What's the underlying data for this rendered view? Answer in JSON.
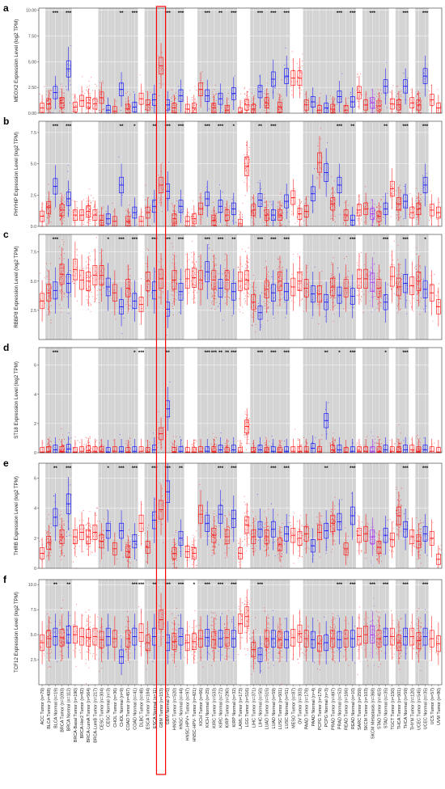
{
  "colors": {
    "tumor": "#ff0000",
    "normal": "#0000ff",
    "metastatic": "#a020f0",
    "band": "#d3d3d3",
    "grid": "#e6e6e6",
    "highlight": "#ff0000"
  },
  "highlight_category": "GBM Tumor (n=153)",
  "chart_data": {
    "type": "box",
    "categories": [
      "ACC Tumor (n=79)",
      "BLCA Tumor (n=408)",
      "BLCA Normal (n=19)",
      "BRCA Tumor (n=1093)",
      "BRCA Normal (n=112)",
      "BRCA-Basal Tumor (n=190)",
      "BRCA-Her2 Tumor (n=82)",
      "BRCA-LumA Tumor (n=564)",
      "BRCA-LumB Tumor (n=217)",
      "CESC Tumor (n=304)",
      "CESC Normal (n=3)",
      "CHOL Tumor (n=36)",
      "CHOL Normal (n=9)",
      "COAD Tumor (n=457)",
      "COAD Normal (n=41)",
      "DLBC Tumor (n=48)",
      "ESCA Tumor (n=184)",
      "ESCA Normal (n=11)",
      "GBM Tumor (n=153)",
      "GBM Normal (n=5)",
      "HNSC Tumor (n=520)",
      "HNSC Normal (n=44)",
      "HNSC-HPV+ Tumor (n=97)",
      "HNSC-HPV- Tumor (n=421)",
      "KICH Tumor (n=66)",
      "KICH Normal (n=25)",
      "KIRC Tumor (n=533)",
      "KIRC Normal (n=72)",
      "KIRP Tumor (n=290)",
      "KIRP Normal (n=32)",
      "LAML Tumor (n=173)",
      "LGG Tumor (n=516)",
      "LIHC Tumor (n=371)",
      "LIHC Normal (n=50)",
      "LUAD Tumor (n=515)",
      "LUAD Normal (n=59)",
      "LUSC Tumor (n=501)",
      "LUSC Normal (n=51)",
      "MESO Tumor (n=87)",
      "OV Tumor (n=303)",
      "PAAD Tumor (n=178)",
      "PAAD Normal (n=4)",
      "PCPG Tumor (n=179)",
      "PCPG Normal (n=3)",
      "PRAD Tumor (n=497)",
      "PRAD Normal (n=52)",
      "READ Tumor (n=166)",
      "READ Normal (n=10)",
      "SARC Tumor (n=259)",
      "SKCM Tumor (n=103)",
      "SKCM Metastasis (n=368)",
      "STAD Tumor (n=415)",
      "STAD Normal (n=35)",
      "TGCT Tumor (n=150)",
      "THCA Tumor (n=501)",
      "THCA Normal (n=59)",
      "THYM Tumor (n=120)",
      "UCEC Tumor (n=545)",
      "UCEC Normal (n=35)",
      "UCS Tumor (n=57)",
      "UVM Tumor (n=80)"
    ],
    "panels": [
      {
        "letter": "a",
        "ylabel": "MEOX2 Expression Level (log2 TPM)",
        "ylim": [
          0,
          10.2
        ],
        "yticks": [
          0,
          2.5,
          5,
          7.5,
          10
        ],
        "ytick_labels": [
          "0.00",
          "2.50",
          "5.00",
          "7.50",
          "10.00"
        ],
        "sig": [
          [
            "BLCA Normal (n=19)",
            "***"
          ],
          [
            "BRCA Normal (n=112)",
            "***"
          ],
          [
            "CHOL Normal (n=9)",
            "**"
          ],
          [
            "COAD Normal (n=41)",
            "***"
          ],
          [
            "GBM Normal (n=5)",
            "***"
          ],
          [
            "HNSC Normal (n=44)",
            "***"
          ],
          [
            "KICH Normal (n=25)",
            "***"
          ],
          [
            "KIRC Normal (n=72)",
            "**"
          ],
          [
            "KIRP Normal (n=32)",
            "***"
          ],
          [
            "LIHC Normal (n=50)",
            "***"
          ],
          [
            "LUAD Normal (n=59)",
            "***"
          ],
          [
            "LUSC Normal (n=51)",
            "***"
          ],
          [
            "PRAD Normal (n=52)",
            "***"
          ],
          [
            "READ Normal (n=10)",
            "***"
          ],
          [
            "SKCM Metastasis (n=368)",
            "***"
          ],
          [
            "THCA Normal (n=59)",
            "***"
          ],
          [
            "UCEC Normal (n=35)",
            "***"
          ]
        ],
        "medians": [
          0.5,
          0.9,
          2.0,
          1.0,
          4.3,
          0.6,
          1.2,
          1.0,
          0.9,
          1.5,
          0.3,
          0.2,
          2.3,
          0.4,
          0.6,
          1.4,
          0.8,
          1.3,
          4.6,
          0.8,
          0.5,
          1.7,
          0.4,
          0.5,
          2.3,
          1.7,
          0.5,
          1.4,
          0.3,
          1.9,
          0.1,
          0.8,
          0.4,
          2.1,
          1.0,
          3.3,
          0.6,
          3.6,
          3.4,
          3.4,
          0.8,
          1.1,
          0.3,
          0.5,
          0.4,
          1.6,
          0.3,
          1.1,
          2.0,
          0.8,
          1.0,
          0.7,
          2.6,
          0.9,
          0.8,
          2.6,
          1.0,
          0.8,
          3.6,
          1.3,
          0.5
        ]
      },
      {
        "letter": "b",
        "ylabel": "PHYHIP Expression Level (log2 TPM)",
        "ylim": [
          0,
          8.4
        ],
        "yticks": [
          0,
          2.5,
          5,
          7.5
        ],
        "ytick_labels": [
          "0.0",
          "2.5",
          "5.0",
          "7.5"
        ],
        "sig": [
          [
            "BLCA Normal (n=19)",
            "***"
          ],
          [
            "BRCA Normal (n=112)",
            "***"
          ],
          [
            "CHOL Normal (n=9)",
            "**"
          ],
          [
            "COAD Normal (n=41)",
            "*"
          ],
          [
            "ESCA Normal (n=11)",
            "**"
          ],
          [
            "GBM Normal (n=5)",
            "***"
          ],
          [
            "HNSC Normal (n=44)",
            "***"
          ],
          [
            "KICH Normal (n=25)",
            "***"
          ],
          [
            "KIRC Normal (n=72)",
            "***"
          ],
          [
            "KIRP Normal (n=32)",
            "*"
          ],
          [
            "LIHC Normal (n=50)",
            "**"
          ],
          [
            "LUAD Normal (n=59)",
            "***"
          ],
          [
            "PRAD Normal (n=52)",
            "***"
          ],
          [
            "READ Normal (n=10)",
            "**"
          ],
          [
            "STAD Normal (n=35)",
            "**"
          ],
          [
            "THCA Normal (n=59)",
            "***"
          ],
          [
            "UCEC Normal (n=35)",
            "***"
          ]
        ],
        "medians": [
          0.8,
          1.5,
          3.2,
          1.3,
          2.2,
          0.9,
          0.9,
          1.2,
          0.9,
          0.5,
          0.6,
          0.4,
          3.3,
          0.4,
          1.1,
          0.4,
          1.1,
          1.6,
          3.3,
          2.8,
          0.6,
          1.6,
          0.4,
          0.6,
          1.4,
          2.2,
          0.5,
          1.6,
          0.9,
          1.4,
          0.2,
          4.8,
          1.3,
          2.1,
          0.9,
          0.9,
          0.9,
          2.0,
          2.3,
          1.0,
          1.2,
          2.6,
          5.1,
          4.3,
          1.8,
          3.3,
          0.9,
          0.5,
          1.3,
          1.4,
          1.0,
          0.8,
          1.4,
          3.0,
          1.8,
          2.0,
          1.1,
          1.4,
          3.3,
          1.3,
          1.1
        ]
      },
      {
        "letter": "c",
        "ylabel": "RBBP8 Expression Level (log2 TPM)",
        "ylim": [
          0,
          9.0
        ],
        "yticks": [
          2.5,
          5,
          7.5
        ],
        "ytick_labels": [
          "2.5",
          "5.0",
          "7.5"
        ],
        "sig": [
          [
            "BLCA Normal (n=19)",
            "***"
          ],
          [
            "CESC Normal (n=3)",
            "*"
          ],
          [
            "CHOL Normal (n=9)",
            "***"
          ],
          [
            "COAD Normal (n=41)",
            "***"
          ],
          [
            "ESCA Normal (n=11)",
            "***"
          ],
          [
            "GBM Normal (n=5)",
            "***"
          ],
          [
            "HNSC Normal (n=44)",
            "***"
          ],
          [
            "KICH Normal (n=25)",
            "***"
          ],
          [
            "KIRC Normal (n=72)",
            "***"
          ],
          [
            "KIRP Normal (n=32)",
            "**"
          ],
          [
            "LIHC Normal (n=50)",
            "***"
          ],
          [
            "LUAD Normal (n=59)",
            "***"
          ],
          [
            "LUSC Normal (n=51)",
            "***"
          ],
          [
            "PRAD Normal (n=52)",
            "*"
          ],
          [
            "READ Normal (n=10)",
            "***"
          ],
          [
            "STAD Normal (n=35)",
            "***"
          ],
          [
            "THCA Normal (n=59)",
            "***"
          ],
          [
            "UCEC Normal (n=35)",
            "*"
          ]
        ],
        "medians": [
          3.3,
          4.0,
          4.2,
          5.6,
          4.8,
          6.0,
          5.1,
          5.0,
          5.5,
          5.5,
          4.5,
          4.0,
          2.8,
          4.4,
          3.3,
          3.0,
          5.0,
          4.2,
          5.2,
          2.6,
          5.1,
          4.1,
          5.2,
          5.3,
          5.1,
          5.8,
          5.1,
          4.4,
          5.1,
          4.1,
          5.0,
          5.1,
          3.2,
          2.3,
          4.3,
          4.0,
          5.0,
          4.1,
          4.5,
          5.0,
          4.4,
          3.9,
          3.9,
          3.2,
          4.5,
          3.8,
          4.4,
          3.7,
          5.2,
          5.2,
          4.9,
          4.4,
          3.2,
          5.4,
          4.5,
          4.8,
          4.6,
          5.0,
          4.3,
          4.0,
          2.8
        ]
      },
      {
        "letter": "d",
        "ylabel": "ST18 Expression Level (log2 TPM)",
        "ylim": [
          0,
          7.2
        ],
        "yticks": [
          0,
          2,
          4,
          6
        ],
        "ytick_labels": [
          "0",
          "2",
          "4",
          "6"
        ],
        "sig": [
          [
            "BLCA Normal (n=19)",
            "***"
          ],
          [
            "COAD Normal (n=41)",
            "*"
          ],
          [
            "DLBC Tumor (n=48)",
            "***"
          ],
          [
            "GBM Normal (n=5)",
            "**"
          ],
          [
            "KICH Normal (n=25)",
            "***"
          ],
          [
            "KIRC Tumor (n=533)",
            "***"
          ],
          [
            "KIRC Normal (n=72)",
            "**"
          ],
          [
            "KIRP Tumor (n=290)",
            "**"
          ],
          [
            "KIRP Normal (n=32)",
            "***"
          ],
          [
            "LIHC Normal (n=50)",
            "***"
          ],
          [
            "LUAD Normal (n=59)",
            "***"
          ],
          [
            "LUSC Normal (n=51)",
            "***"
          ],
          [
            "PCPG Normal (n=3)",
            "**"
          ],
          [
            "PRAD Normal (n=52)",
            "*"
          ],
          [
            "READ Normal (n=10)",
            "***"
          ],
          [
            "STAD Normal (n=35)",
            "*"
          ],
          [
            "THCA Normal (n=59)",
            "***"
          ]
        ],
        "medians": [
          0.05,
          0.1,
          0.2,
          0.1,
          0.25,
          0.05,
          0.1,
          0.15,
          0.1,
          0.1,
          0.05,
          0.1,
          0.1,
          0.05,
          0.1,
          0.1,
          0.05,
          0.2,
          1.3,
          3.0,
          0.05,
          0.1,
          0.05,
          0.05,
          0.1,
          0.1,
          0.1,
          0.2,
          0.05,
          0.2,
          0.05,
          1.8,
          0.05,
          0.2,
          0.05,
          0.1,
          0.05,
          0.1,
          0.1,
          0.1,
          0.1,
          0.3,
          0.1,
          2.2,
          0.2,
          0.2,
          0.05,
          0.1,
          0.1,
          0.1,
          0.1,
          0.1,
          0.2,
          0.1,
          0.1,
          0.2,
          0.2,
          0.1,
          0.2,
          0.1,
          0.05
        ]
      },
      {
        "letter": "e",
        "ylabel": "THRB Expression Level (log2 TPM)",
        "ylim": [
          0,
          7.0
        ],
        "yticks": [
          0,
          2,
          4,
          6
        ],
        "ytick_labels": [
          "0",
          "2",
          "4",
          "6"
        ],
        "sig": [
          [
            "BLCA Normal (n=19)",
            "**"
          ],
          [
            "BRCA Normal (n=112)",
            "***"
          ],
          [
            "CESC Normal (n=3)",
            "*"
          ],
          [
            "CHOL Normal (n=9)",
            "***"
          ],
          [
            "COAD Normal (n=41)",
            "***"
          ],
          [
            "ESCA Normal (n=11)",
            "***"
          ],
          [
            "GBM Normal (n=5)",
            "***"
          ],
          [
            "HNSC Normal (n=44)",
            "**"
          ],
          [
            "KIRC Normal (n=72)",
            "***"
          ],
          [
            "KIRP Normal (n=32)",
            "***"
          ],
          [
            "LUAD Normal (n=59)",
            "***"
          ],
          [
            "LUSC Normal (n=51)",
            "***"
          ],
          [
            "PCPG Normal (n=3)",
            "**"
          ],
          [
            "READ Normal (n=10)",
            "***"
          ],
          [
            "THCA Normal (n=59)",
            "***"
          ],
          [
            "UCEC Normal (n=35)",
            "***"
          ]
        ],
        "medians": [
          1.0,
          1.7,
          3.4,
          2.1,
          4.3,
          2.1,
          2.4,
          2.1,
          2.4,
          1.8,
          2.5,
          1.3,
          2.5,
          1.1,
          1.8,
          3.0,
          1.4,
          3.2,
          3.9,
          5.1,
          1.0,
          2.0,
          1.1,
          1.0,
          3.6,
          3.0,
          2.2,
          3.6,
          2.1,
          3.3,
          1.0,
          2.9,
          2.1,
          2.6,
          2.1,
          2.6,
          1.6,
          2.3,
          2.2,
          2.0,
          2.3,
          1.5,
          2.4,
          2.5,
          3.0,
          3.1,
          1.3,
          3.5,
          2.2,
          2.3,
          2.1,
          1.4,
          2.2,
          1.9,
          3.5,
          2.6,
          2.1,
          1.8,
          2.3,
          2.0,
          0.6
        ]
      },
      {
        "letter": "f",
        "ylabel": "TCF12 Expression Level (log2 TPM)",
        "ylim": [
          0,
          10.5
        ],
        "yticks": [
          2.5,
          5,
          7.5,
          10
        ],
        "ytick_labels": [
          "2.5",
          "5.0",
          "7.5",
          "10.0"
        ],
        "sig": [
          [
            "BLCA Normal (n=19)",
            "**"
          ],
          [
            "BRCA Normal (n=112)",
            "**"
          ],
          [
            "COAD Normal (n=41)",
            "***"
          ],
          [
            "DLBC Tumor (n=48)",
            "***"
          ],
          [
            "ESCA Normal (n=11)",
            "**"
          ],
          [
            "GBM Normal (n=5)",
            "***"
          ],
          [
            "HNSC Normal (n=44)",
            "***"
          ],
          [
            "HNSC-HPV- Tumor (n=421)",
            "*"
          ],
          [
            "KICH Normal (n=25)",
            "***"
          ],
          [
            "KIRC Normal (n=72)",
            "***"
          ],
          [
            "KIRP Normal (n=32)",
            "***"
          ],
          [
            "LIHC Normal (n=50)",
            "***"
          ],
          [
            "PRAD Normal (n=52)",
            "***"
          ],
          [
            "READ Normal (n=10)",
            "***"
          ],
          [
            "SKCM Metastasis (n=368)",
            "***"
          ],
          [
            "STAD Normal (n=35)",
            "***"
          ],
          [
            "THCA Normal (n=59)",
            "***"
          ],
          [
            "UCEC Normal (n=35)",
            "***"
          ]
        ],
        "medians": [
          4.2,
          4.6,
          4.8,
          4.7,
          5.0,
          5.0,
          4.8,
          4.7,
          4.8,
          4.5,
          4.8,
          4.6,
          2.8,
          4.6,
          4.8,
          5.2,
          4.2,
          4.8,
          6.5,
          4.2,
          4.3,
          4.8,
          4.2,
          4.3,
          4.6,
          4.7,
          4.5,
          4.6,
          4.7,
          4.6,
          6.1,
          6.8,
          3.5,
          3.0,
          4.6,
          4.6,
          4.5,
          4.5,
          4.7,
          5.1,
          4.6,
          4.5,
          4.1,
          4.2,
          4.6,
          4.5,
          4.6,
          4.6,
          4.8,
          5.0,
          5.0,
          4.6,
          4.8,
          4.8,
          4.2,
          4.8,
          4.8,
          4.4,
          4.8,
          4.6,
          4.1
        ]
      }
    ]
  }
}
